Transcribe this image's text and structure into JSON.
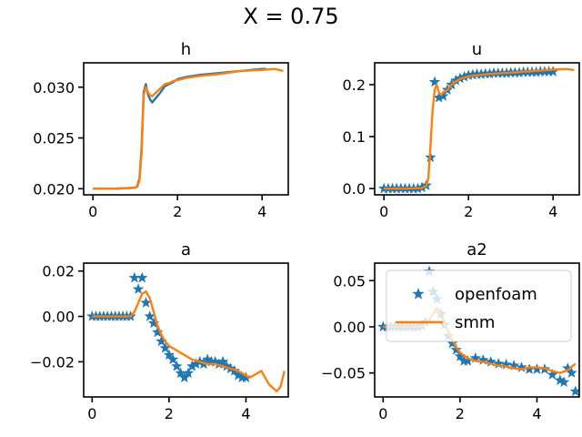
{
  "figure_title": "X = 0.75",
  "colors": {
    "openfoam": "#1f77b4",
    "smm": "#ff7f0e"
  },
  "chart_data": [
    {
      "type": "line",
      "title": "h",
      "xlabel": "",
      "ylabel": "",
      "xlim": [
        -0.22,
        4.62
      ],
      "ylim": [
        0.0194,
        0.0324
      ],
      "xticks": [
        0,
        2,
        4
      ],
      "yticks": [
        0.02,
        0.025,
        0.03
      ],
      "ytick_labels": [
        "0.020",
        "0.025",
        "0.030"
      ],
      "legend": null,
      "series": [
        {
          "label": "openfoam",
          "style": "line",
          "x": [
            0,
            0.5,
            1.0,
            1.05,
            1.1,
            1.15,
            1.2,
            1.25,
            1.3,
            1.35,
            1.4,
            1.5,
            1.6,
            1.7,
            1.8,
            1.9,
            2.0,
            2.2,
            2.5,
            3.0,
            3.5,
            4.0,
            4.1
          ],
          "y": [
            0.02,
            0.02,
            0.0201,
            0.0203,
            0.021,
            0.024,
            0.0295,
            0.0303,
            0.0293,
            0.0288,
            0.0285,
            0.029,
            0.0295,
            0.0301,
            0.0303,
            0.0305,
            0.0308,
            0.031,
            0.0312,
            0.0314,
            0.0316,
            0.0318,
            0.0318
          ]
        },
        {
          "label": "smm",
          "style": "line",
          "x": [
            0,
            0.5,
            1.0,
            1.05,
            1.1,
            1.15,
            1.2,
            1.25,
            1.3,
            1.35,
            1.4,
            1.5,
            1.6,
            1.7,
            1.8,
            1.9,
            2.0,
            2.2,
            2.5,
            3.0,
            3.5,
            4.0,
            4.3,
            4.5
          ],
          "y": [
            0.02,
            0.02,
            0.0201,
            0.0202,
            0.0208,
            0.0235,
            0.0292,
            0.03,
            0.0295,
            0.0292,
            0.0291,
            0.0295,
            0.0299,
            0.0303,
            0.0304,
            0.0306,
            0.0307,
            0.0309,
            0.0311,
            0.0313,
            0.0316,
            0.0317,
            0.0318,
            0.0316
          ]
        }
      ]
    },
    {
      "type": "line",
      "title": "u",
      "xlabel": "",
      "ylabel": "",
      "xlim": [
        -0.22,
        4.62
      ],
      "ylim": [
        -0.012,
        0.242
      ],
      "xticks": [
        0,
        2,
        4
      ],
      "yticks": [
        0.0,
        0.1,
        0.2
      ],
      "ytick_labels": [
        "0.0",
        "0.1",
        "0.2"
      ],
      "legend": null,
      "series": [
        {
          "label": "openfoam",
          "style": "markers",
          "x": [
            0,
            0.1,
            0.2,
            0.3,
            0.4,
            0.5,
            0.6,
            0.7,
            0.8,
            0.9,
            1.0,
            1.1,
            1.2,
            1.3,
            1.4,
            1.5,
            1.6,
            1.7,
            1.8,
            1.9,
            2.0,
            2.1,
            2.2,
            2.3,
            2.4,
            2.5,
            2.6,
            2.7,
            2.8,
            2.9,
            3.0,
            3.1,
            3.2,
            3.3,
            3.4,
            3.5,
            3.6,
            3.7,
            3.8,
            3.9,
            4.0
          ],
          "y": [
            0,
            0,
            0,
            0,
            0,
            0,
            0,
            0,
            0,
            0.002,
            0.006,
            0.06,
            0.205,
            0.175,
            0.178,
            0.19,
            0.2,
            0.208,
            0.212,
            0.215,
            0.218,
            0.219,
            0.22,
            0.22,
            0.221,
            0.221,
            0.222,
            0.222,
            0.222,
            0.222,
            0.223,
            0.223,
            0.223,
            0.224,
            0.224,
            0.224,
            0.224,
            0.225,
            0.225,
            0.225,
            0.225
          ]
        },
        {
          "label": "smm",
          "style": "line",
          "x": [
            0,
            0.5,
            0.9,
            1.0,
            1.05,
            1.1,
            1.15,
            1.2,
            1.25,
            1.3,
            1.35,
            1.4,
            1.5,
            1.6,
            1.7,
            1.8,
            2.0,
            2.3,
            2.6,
            3.0,
            3.5,
            4.0,
            4.3,
            4.5
          ],
          "y": [
            0,
            0,
            0.001,
            0.005,
            0.02,
            0.08,
            0.15,
            0.19,
            0.2,
            0.185,
            0.18,
            0.185,
            0.19,
            0.2,
            0.206,
            0.211,
            0.216,
            0.219,
            0.221,
            0.223,
            0.226,
            0.229,
            0.23,
            0.228
          ]
        }
      ]
    },
    {
      "type": "line",
      "title": "a",
      "xlabel": "",
      "ylabel": "",
      "xlim": [
        -0.22,
        5.1
      ],
      "ylim": [
        -0.0355,
        0.0235
      ],
      "xticks": [
        0,
        2,
        4
      ],
      "yticks": [
        0.02,
        0.0,
        -0.02
      ],
      "ytick_labels": [
        "0.02",
        "0.00",
        "−0.02"
      ],
      "legend": null,
      "series": [
        {
          "label": "openfoam",
          "style": "markers",
          "x": [
            0,
            0.1,
            0.2,
            0.3,
            0.4,
            0.5,
            0.6,
            0.7,
            0.8,
            0.9,
            1.0,
            1.1,
            1.2,
            1.3,
            1.4,
            1.5,
            1.6,
            1.7,
            1.8,
            1.9,
            2.0,
            2.1,
            2.2,
            2.3,
            2.4,
            2.5,
            2.6,
            2.7,
            2.8,
            2.9,
            3.0,
            3.1,
            3.2,
            3.3,
            3.4,
            3.5,
            3.6,
            3.7,
            3.8,
            3.9,
            4.0
          ],
          "y": [
            0,
            0,
            0,
            0,
            0,
            0,
            0,
            0,
            0,
            0,
            0,
            0.017,
            0.012,
            0.017,
            0.006,
            0.0,
            -0.003,
            -0.007,
            -0.011,
            -0.014,
            -0.017,
            -0.019,
            -0.022,
            -0.025,
            -0.027,
            -0.025,
            -0.022,
            -0.021,
            -0.02,
            -0.021,
            -0.019,
            -0.02,
            -0.02,
            -0.021,
            -0.02,
            -0.022,
            -0.023,
            -0.024,
            -0.026,
            -0.027,
            -0.027
          ]
        },
        {
          "label": "smm",
          "style": "line",
          "x": [
            0,
            0.5,
            1.0,
            1.1,
            1.2,
            1.3,
            1.4,
            1.5,
            1.6,
            1.7,
            1.8,
            1.9,
            2.0,
            2.2,
            2.4,
            2.6,
            2.8,
            3.0,
            3.2,
            3.4,
            3.6,
            3.8,
            4.0,
            4.1,
            4.2,
            4.4,
            4.6,
            4.8,
            4.9,
            5.0
          ],
          "y": [
            0,
            0,
            0,
            0.002,
            0.006,
            0.01,
            0.011,
            0.008,
            0.002,
            -0.004,
            -0.008,
            -0.011,
            -0.013,
            -0.015,
            -0.017,
            -0.019,
            -0.02,
            -0.021,
            -0.021,
            -0.022,
            -0.023,
            -0.024,
            -0.026,
            -0.027,
            -0.026,
            -0.024,
            -0.03,
            -0.033,
            -0.031,
            -0.024
          ]
        }
      ]
    },
    {
      "type": "line",
      "title": "a2",
      "xlabel": "",
      "ylabel": "",
      "xlim": [
        -0.22,
        5.1
      ],
      "ylim": [
        -0.076,
        0.069
      ],
      "xticks": [
        0,
        2,
        4
      ],
      "yticks": [
        0.05,
        0.0,
        -0.05
      ],
      "ytick_labels": [
        "0.05",
        "0.00",
        "−0.05"
      ],
      "legend": {
        "position": "upper-right",
        "entries": [
          "openfoam",
          "smm"
        ]
      },
      "series": [
        {
          "label": "openfoam",
          "style": "markers",
          "x": [
            0,
            0.1,
            0.2,
            0.3,
            0.4,
            0.5,
            0.6,
            0.7,
            0.8,
            0.9,
            1.0,
            1.1,
            1.2,
            1.3,
            1.4,
            1.5,
            1.6,
            1.7,
            1.8,
            1.9,
            2.0,
            2.1,
            2.2,
            2.4,
            2.6,
            2.8,
            3.0,
            3.2,
            3.4,
            3.6,
            3.8,
            4.0,
            4.2,
            4.4,
            4.6,
            4.7,
            4.8,
            4.9,
            5.0
          ],
          "y": [
            0,
            0,
            0,
            0,
            0,
            0,
            0,
            0,
            0,
            0,
            0.001,
            0.005,
            0.06,
            0.038,
            0.03,
            0.014,
            0.002,
            -0.01,
            -0.018,
            -0.025,
            -0.032,
            -0.037,
            -0.037,
            -0.034,
            -0.036,
            -0.038,
            -0.04,
            -0.041,
            -0.042,
            -0.044,
            -0.046,
            -0.046,
            -0.046,
            -0.052,
            -0.058,
            -0.06,
            -0.045,
            -0.05,
            -0.07
          ]
        },
        {
          "label": "smm",
          "style": "line",
          "x": [
            0,
            0.5,
            1.0,
            1.1,
            1.2,
            1.3,
            1.4,
            1.5,
            1.6,
            1.7,
            1.8,
            1.9,
            2.0,
            2.2,
            2.4,
            2.6,
            2.8,
            3.0,
            3.2,
            3.4,
            3.6,
            3.8,
            4.0,
            4.2,
            4.4,
            4.6,
            4.8,
            5.0
          ],
          "y": [
            0,
            0,
            0,
            0.003,
            0.008,
            0.014,
            0.02,
            0.012,
            0.004,
            -0.006,
            -0.014,
            -0.022,
            -0.028,
            -0.034,
            -0.037,
            -0.038,
            -0.04,
            -0.042,
            -0.043,
            -0.045,
            -0.046,
            -0.044,
            -0.044,
            -0.045,
            -0.048,
            -0.05,
            -0.047,
            -0.04
          ]
        }
      ]
    }
  ]
}
